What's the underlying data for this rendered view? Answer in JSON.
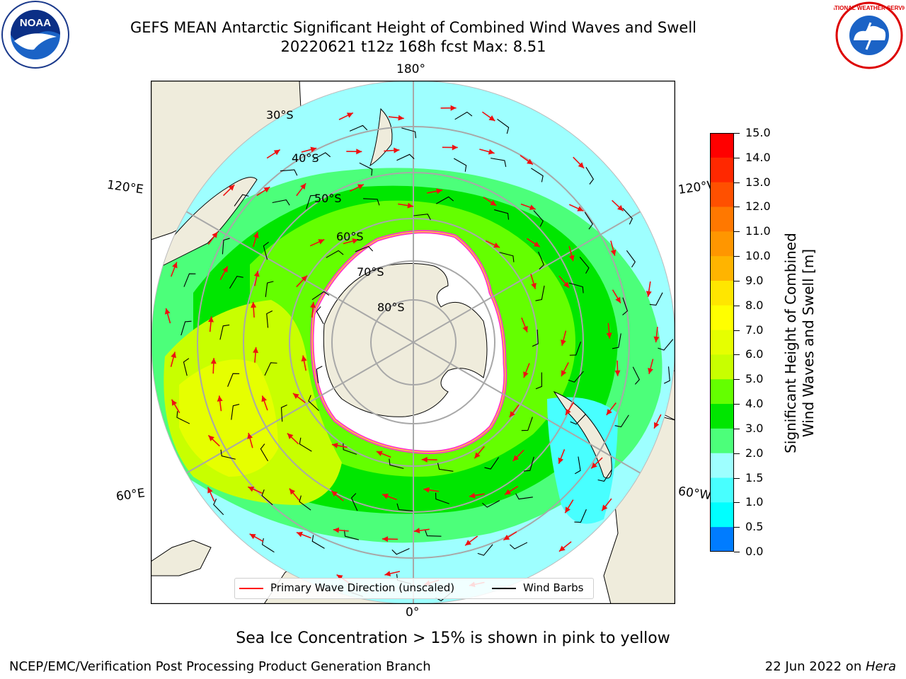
{
  "title_line1": "GEFS MEAN Antarctic Significant Height of Combined Wind Waves and Swell",
  "title_line2": "20220621 t12z 168h fcst   Max: 8.51",
  "map": {
    "longitude_labels": {
      "top": "180°",
      "bottom": "0°",
      "upper_left": "120°E",
      "upper_right": "120°W",
      "lower_left": "60°E",
      "lower_right": "60°W"
    },
    "latitude_labels": [
      "30°S",
      "40°S",
      "50°S",
      "60°S",
      "70°S",
      "80°S"
    ]
  },
  "colorbar": {
    "label_line1": "Significant Height of Combined",
    "label_line2": "Wind Waves and Swell [m]",
    "ticks": [
      "15.0",
      "14.0",
      "13.0",
      "12.0",
      "11.0",
      "10.0",
      "9.0",
      "8.0",
      "7.0",
      "6.0",
      "5.0",
      "4.0",
      "3.0",
      "2.0",
      "1.5",
      "1.0",
      "0.5",
      "0.0"
    ],
    "colors": [
      "#ff0000",
      "#ff2800",
      "#ff5000",
      "#ff7800",
      "#ff9600",
      "#ffb400",
      "#ffe600",
      "#ffff00",
      "#e6ff00",
      "#c8ff00",
      "#64ff00",
      "#00e600",
      "#4cff7a",
      "#9effff",
      "#48ffff",
      "#00ffff",
      "#007cff",
      "#0000ff"
    ]
  },
  "legend": {
    "wave_direction": "Primary Wave Direction (unscaled)",
    "wind_barbs": "Wind Barbs"
  },
  "footnote": "Sea Ice Concentration > 15% is shown in pink to yellow",
  "credit_left": "NCEP/EMC/Verification Post Processing Product Generation Branch",
  "credit_date": "22 Jun 2022 on ",
  "credit_host": "Hera",
  "logos": {
    "left": "NOAA",
    "right": "NATIONAL WEATHER SERVICE"
  }
}
